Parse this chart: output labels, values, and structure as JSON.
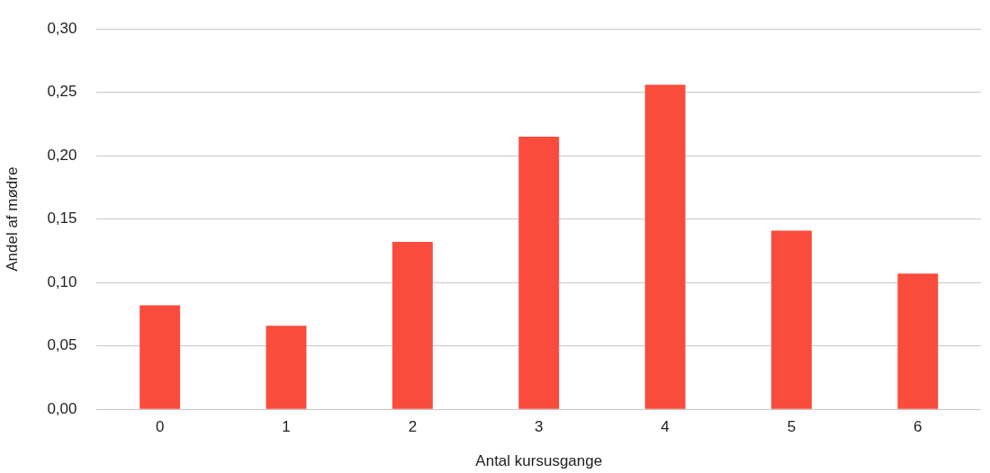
{
  "chart_data": {
    "type": "bar",
    "xlabel": "Antal kursusgange",
    "ylabel": "Andel af mødre",
    "categories": [
      "0",
      "1",
      "2",
      "3",
      "4",
      "5",
      "6"
    ],
    "values": [
      0.082,
      0.066,
      0.132,
      0.215,
      0.256,
      0.141,
      0.107
    ],
    "color": "#f94c3c",
    "ylim": [
      0,
      0.3
    ],
    "yticks": [
      {
        "value": 0,
        "label": "0,00"
      },
      {
        "value": 0.05,
        "label": "0,05"
      },
      {
        "value": 0.1,
        "label": "0,10"
      },
      {
        "value": 0.15,
        "label": "0,15"
      },
      {
        "value": 0.2,
        "label": "0,20"
      },
      {
        "value": 0.25,
        "label": "0,25"
      },
      {
        "value": 0.3,
        "label": "0,30"
      }
    ],
    "grid": "y",
    "legend": false
  }
}
